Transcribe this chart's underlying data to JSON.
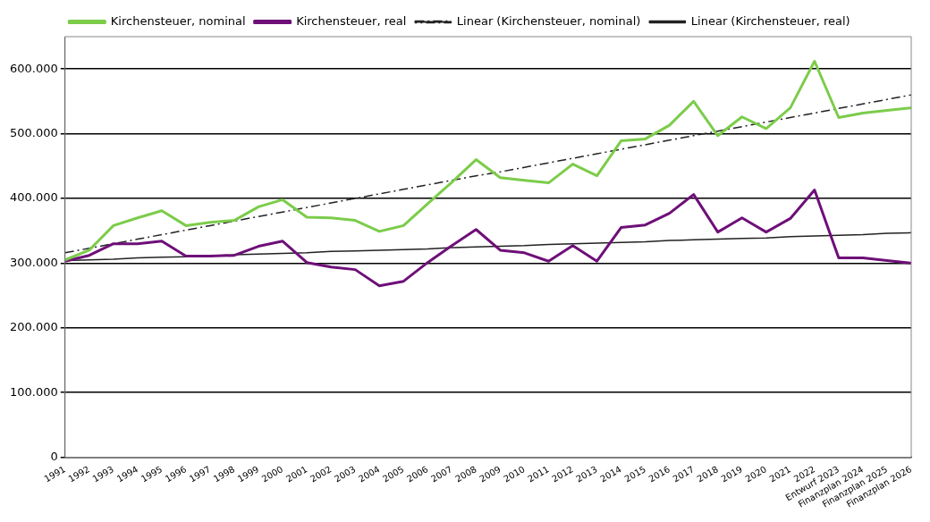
{
  "chart_data": {
    "type": "line",
    "categories": [
      "1991",
      "1992",
      "1993",
      "1994",
      "1995",
      "1996",
      "1997",
      "1998",
      "1999",
      "2000",
      "2001",
      "2002",
      "2003",
      "2004",
      "2005",
      "2006",
      "2007",
      "2008",
      "2009",
      "2010",
      "2011",
      "2012",
      "2013",
      "2014",
      "2015",
      "2016",
      "2017",
      "2018",
      "2019",
      "2020",
      "2021",
      "2022",
      "Entwurf 2023",
      "Finanzplan 2024",
      "Finanzplan 2025",
      "Finanzplan 2026"
    ],
    "series": [
      {
        "name": "Kirchensteuer, nominal",
        "color": "#7ccc4a",
        "values": [
          305000,
          320000,
          358000,
          370000,
          381000,
          358000,
          363000,
          366000,
          387000,
          398000,
          371000,
          370000,
          366000,
          349000,
          358000,
          392000,
          425000,
          460000,
          432000,
          428000,
          424000,
          453000,
          435000,
          489000,
          492000,
          513000,
          550000,
          497000,
          526000,
          508000,
          540000,
          612000,
          525000,
          532000,
          536000,
          540000
        ]
      },
      {
        "name": "Kirchensteuer, real",
        "color": "#6e0f78",
        "values": [
          303000,
          312000,
          330000,
          330000,
          334000,
          311000,
          311000,
          312000,
          326000,
          334000,
          301000,
          294000,
          290000,
          265000,
          272000,
          301000,
          327000,
          352000,
          320000,
          316000,
          303000,
          327000,
          303000,
          355000,
          359000,
          377000,
          406000,
          348000,
          370000,
          348000,
          369000,
          413000,
          308000,
          308000,
          304000,
          300000
        ]
      },
      {
        "name": "Linear (Kirchensteuer, nominal)",
        "type": "line",
        "color": "#222222",
        "line_style": "dashed",
        "values": [
          316000,
          323000,
          330000,
          337000,
          344000,
          351000,
          358000,
          365000,
          372000,
          379000,
          386000,
          393000,
          400000,
          407000,
          414000,
          421000,
          428000,
          435000,
          441000,
          448000,
          455000,
          462000,
          469000,
          476000,
          483000,
          490000,
          497000,
          504000,
          511000,
          518000,
          525000,
          532000,
          539000,
          546000,
          553000,
          560000
        ]
      },
      {
        "name": "Linear (Kirchensteuer, real)",
        "type": "line",
        "color": "#222222",
        "line_style": "solid",
        "values": [
          304000,
          305000,
          306000,
          308000,
          309000,
          310000,
          311000,
          313000,
          314000,
          315000,
          316000,
          318000,
          319000,
          320000,
          321000,
          322000,
          324000,
          325000,
          326000,
          327000,
          329000,
          330000,
          331000,
          332000,
          333000,
          335000,
          336000,
          337000,
          338000,
          339000,
          341000,
          342000,
          343000,
          344000,
          346000,
          347000
        ]
      }
    ],
    "ylim": [
      0,
      650000
    ],
    "yticks": [
      {
        "value": 0,
        "label": "0"
      },
      {
        "value": 100000,
        "label": "100.000"
      },
      {
        "value": 200000,
        "label": "200.000"
      },
      {
        "value": 300000,
        "label": "300.000"
      },
      {
        "value": 400000,
        "label": "400.000"
      },
      {
        "value": 500000,
        "label": "500.000"
      },
      {
        "value": 600000,
        "label": "600.000"
      }
    ],
    "grid": "y",
    "legend": "top",
    "marker": "none"
  }
}
